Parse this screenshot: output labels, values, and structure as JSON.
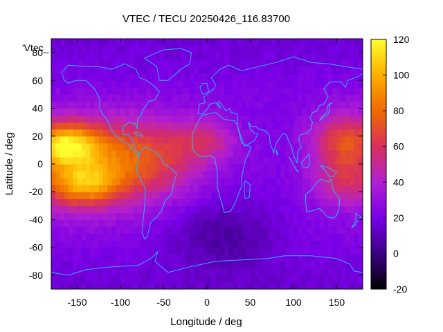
{
  "chart_data": {
    "type": "heatmap",
    "title": "VTEC / TECU 20250426_116.83700",
    "xlabel": "Longitude / deg",
    "ylabel": "Latitude / deg",
    "series_key_label": "'Vtec_",
    "xlim": [
      -180,
      180
    ],
    "ylim": [
      -90,
      90
    ],
    "xticks": [
      -150,
      -100,
      -50,
      0,
      50,
      100,
      150
    ],
    "yticks": [
      -80,
      -60,
      -40,
      -20,
      0,
      20,
      40,
      60,
      80
    ],
    "colorbar": {
      "range": [
        -20,
        120
      ],
      "ticks": [
        -20,
        0,
        20,
        40,
        60,
        80,
        100,
        120
      ],
      "palette": [
        "#000000",
        "#3b0084",
        "#7a00e8",
        "#b21fd0",
        "#d8305c",
        "#ee6a00",
        "#ffae00",
        "#ffff30"
      ]
    },
    "grid": {
      "lon_step_deg": 5,
      "lat_step_deg": 5
    },
    "tec_features": {
      "background_level_tecu": 22,
      "polar_level_tecu": 18,
      "equatorial_anomaly_peak_tecu": 118,
      "anomaly_crests": [
        {
          "region": "pacific-north",
          "lon": -165,
          "lat": 15,
          "peak_tecu": 118
        },
        {
          "region": "pacific-south",
          "lon": -140,
          "lat": -15,
          "peak_tecu": 100
        },
        {
          "region": "asia-north",
          "lon": 160,
          "lat": 20,
          "peak_tecu": 80
        },
        {
          "region": "asia-south",
          "lon": 160,
          "lat": -15,
          "peak_tecu": 72
        }
      ],
      "minimum_region": {
        "lon": 20,
        "lat": -50,
        "tecu": 6
      }
    },
    "overlay": "coastlines"
  }
}
